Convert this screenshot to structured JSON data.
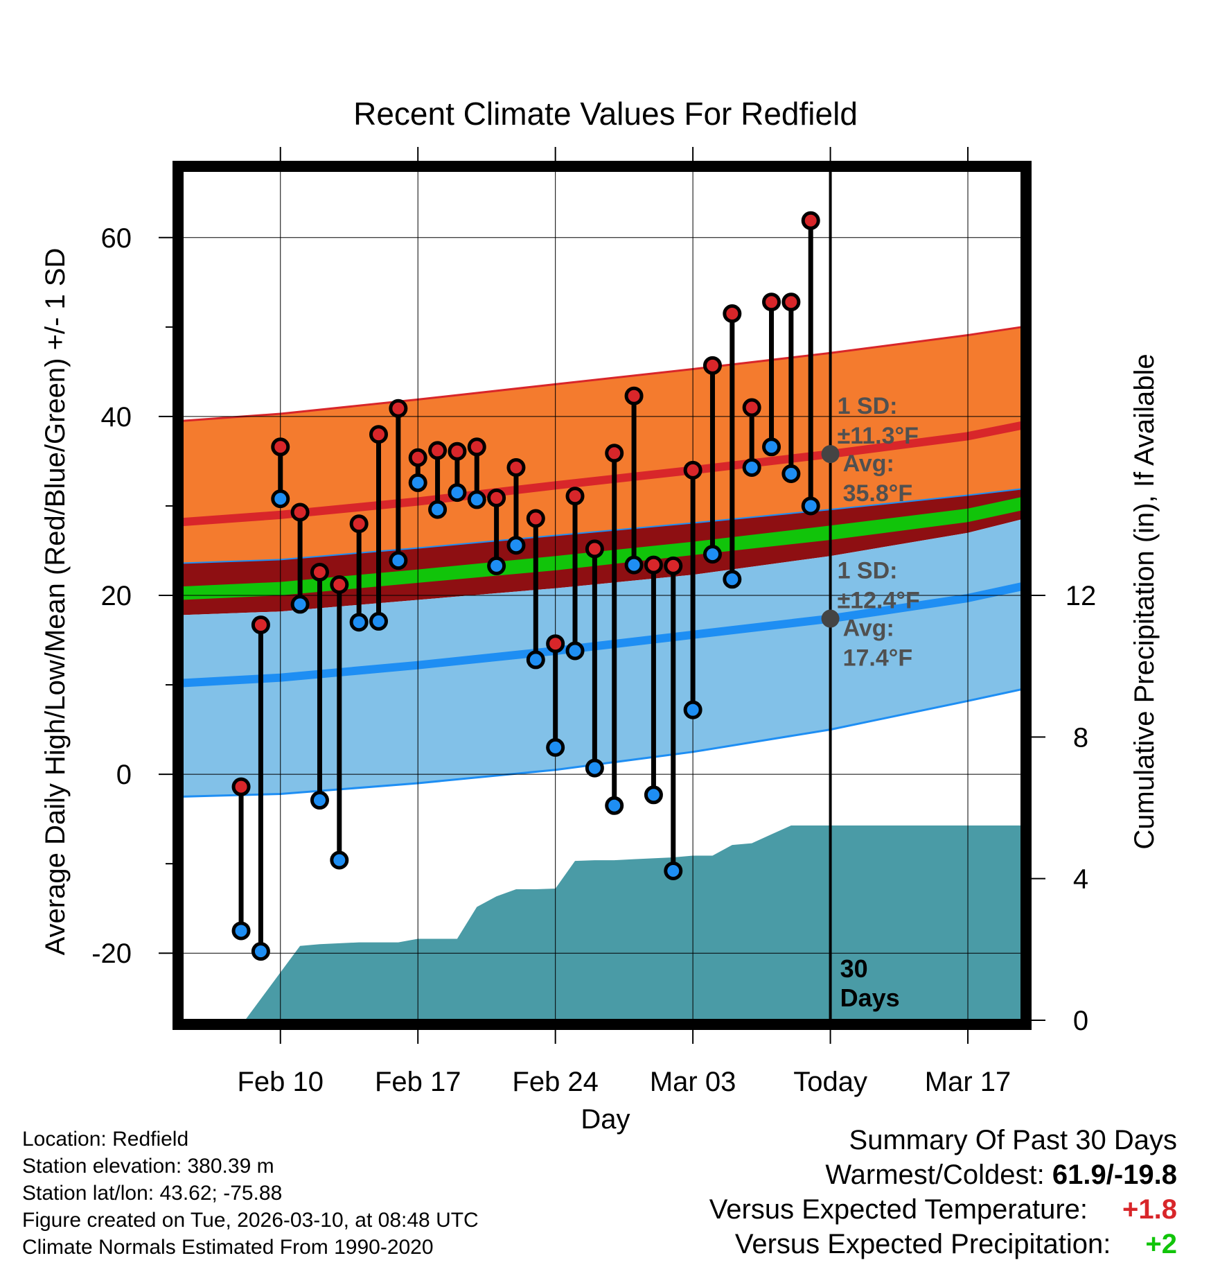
{
  "title": "Recent Climate Values For Redfield",
  "colors": {
    "high_band": "#f47b2e",
    "high_line": "#d8262a",
    "low_band": "#82c1e8",
    "low_line": "#1e8ef3",
    "mean_band": "#8e0f12",
    "green": "#11c40a",
    "precip": "#4a9ba6",
    "high_marker": "#d8262a",
    "low_marker": "#1e8ef3",
    "sd_text": "#505050"
  },
  "chart_data": {
    "type": "line",
    "title": "Recent Climate Values For Redfield",
    "xlabel": "Day",
    "ylabel": "Average Daily High/Low/Mean (Red/Blue/Green) +/- 1 SD",
    "ylabel_right": "Cumulative Precipitation (in), If Available",
    "x_range_days": [
      -33,
      9.75
    ],
    "ylim": [
      -27.5,
      67.5
    ],
    "y_ticks": [
      -20,
      0,
      20,
      40,
      60
    ],
    "y_tick_labels": [
      "-20",
      "0",
      "20",
      "40",
      "60"
    ],
    "right_ylim": [
      0,
      24
    ],
    "right_ticks": [
      0,
      4,
      8,
      12
    ],
    "right_tick_labels": [
      "0",
      "4",
      "8",
      "12"
    ],
    "x_ticks": [
      -28,
      -21,
      -14,
      -7,
      0,
      7
    ],
    "x_tick_labels": [
      "Feb 10",
      "Feb 17",
      "Feb 24",
      "Mar 03",
      "Today",
      "Mar 17"
    ],
    "today_label": "30\nDays",
    "normals": {
      "days": [
        -33,
        -28,
        -21,
        -14,
        -7,
        0,
        7,
        9.75
      ],
      "high_mean": [
        28.2,
        29.0,
        30.5,
        32.3,
        34.0,
        35.8,
        37.8,
        39.0
      ],
      "high_upper": [
        39.5,
        40.3,
        41.9,
        43.6,
        45.3,
        47.1,
        49.1,
        50.0
      ],
      "high_lower": [
        23.6,
        24.0,
        25.3,
        26.7,
        28.1,
        29.6,
        31.2,
        31.9
      ],
      "mean_lower": [
        19.5,
        20.0,
        21.4,
        22.8,
        24.5,
        26.2,
        28.2,
        29.5
      ],
      "mean_upper": [
        21.0,
        21.5,
        22.9,
        24.4,
        26.0,
        27.8,
        29.7,
        31.0
      ],
      "low_upper": [
        17.8,
        18.2,
        19.5,
        20.8,
        22.3,
        24.4,
        27.0,
        28.5
      ],
      "low_mean": [
        10.2,
        10.8,
        12.2,
        13.8,
        15.6,
        17.4,
        19.7,
        21.0
      ],
      "low_lower": [
        -2.5,
        -2.2,
        -1.0,
        0.5,
        2.5,
        5.0,
        8.2,
        9.5
      ]
    },
    "high_sd": {
      "title": "1 SD:",
      "range": "±11.3°F",
      "avg_label": "Avg:",
      "avg": "35.8°F",
      "avg_value": 35.8
    },
    "low_sd": {
      "title": "1 SD:",
      "range": "±12.4°F",
      "avg_label": "Avg:",
      "avg": "17.4°F",
      "avg_value": 17.4
    },
    "series": [
      {
        "name": "Daily High",
        "days": [
          -30,
          -29,
          -28,
          -27,
          -26,
          -25,
          -24,
          -23,
          -22,
          -21,
          -20,
          -19,
          -18,
          -17,
          -16,
          -15,
          -14,
          -13,
          -12,
          -11,
          -10,
          -9,
          -8,
          -7,
          -6,
          -5,
          -4,
          -3,
          -2,
          -1
        ],
        "values": [
          -1.4,
          16.7,
          36.6,
          29.3,
          22.6,
          21.2,
          28.0,
          38.0,
          40.9,
          35.4,
          36.2,
          36.1,
          36.6,
          30.9,
          34.3,
          28.6,
          14.6,
          31.1,
          25.2,
          35.9,
          42.3,
          23.4,
          23.3,
          34.0,
          45.7,
          51.5,
          41.0,
          52.8,
          52.8,
          61.9
        ]
      },
      {
        "name": "Daily Low",
        "days": [
          -30,
          -29,
          -28,
          -27,
          -26,
          -25,
          -24,
          -23,
          -22,
          -21,
          -20,
          -19,
          -18,
          -17,
          -16,
          -15,
          -14,
          -13,
          -12,
          -11,
          -10,
          -9,
          -8,
          -7,
          -6,
          -5,
          -4,
          -3,
          -2,
          -1
        ],
        "values": [
          -17.5,
          -19.8,
          30.8,
          19.0,
          -2.9,
          -9.6,
          17.0,
          17.1,
          23.9,
          32.6,
          29.6,
          31.5,
          30.7,
          23.3,
          25.6,
          12.8,
          3.0,
          13.8,
          0.7,
          -3.5,
          23.4,
          -2.3,
          -10.8,
          7.2,
          24.6,
          21.8,
          34.3,
          36.6,
          33.6,
          30.0
        ]
      },
      {
        "name": "Cumulative Precipitation",
        "days": [
          -33,
          -29.8,
          -27,
          -26,
          -24,
          -22,
          -21,
          -20,
          -19,
          -18,
          -17,
          -16,
          -15,
          -14,
          -13,
          -12,
          -11,
          -10,
          -8,
          -7,
          -6,
          -5,
          -4,
          -3,
          -2,
          -1,
          0,
          9.75
        ],
        "values": [
          0,
          0,
          2.1,
          2.15,
          2.2,
          2.2,
          2.3,
          2.3,
          2.3,
          3.2,
          3.5,
          3.7,
          3.7,
          3.72,
          4.5,
          4.52,
          4.52,
          4.55,
          4.6,
          4.65,
          4.65,
          4.95,
          5.0,
          5.25,
          5.5,
          5.5,
          5.5,
          5.5
        ]
      }
    ]
  },
  "info": {
    "location": "Location: Redfield",
    "elevation": "Station elevation: 380.39 m",
    "latlon": "Station lat/lon: 43.62; -75.88",
    "created": "Figure created on Tue, 2026-03-10, at 08:48 UTC",
    "normals": "Climate Normals Estimated From 1990-2020"
  },
  "summary": {
    "heading": "Summary Of Past 30 Days",
    "warm_cold_label": "Warmest/Coldest:",
    "warm_cold_value": "61.9/-19.8",
    "temp_label": "Versus Expected Temperature:",
    "temp_value": "+1.8",
    "precip_label": "Versus Expected Precipitation:",
    "precip_value": "+2"
  }
}
